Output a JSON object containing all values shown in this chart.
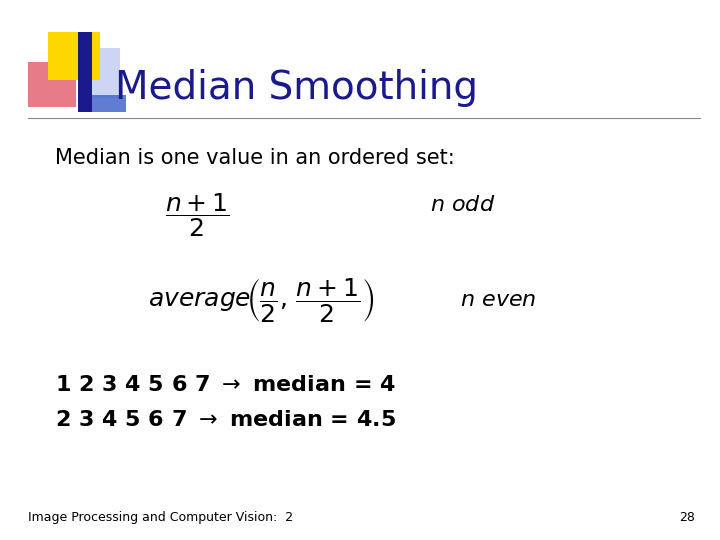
{
  "title": "Median Smoothing",
  "title_color": "#1a1a8c",
  "title_fontsize": 28,
  "subtitle": "Median is one value in an ordered set:",
  "subtitle_fontsize": 15,
  "formula_fontsize": 18,
  "label_fontsize": 16,
  "example_fontsize": 16,
  "footer": "Image Processing and Computer Vision:  2",
  "page_number": "28",
  "footer_fontsize": 9,
  "bg_color": "#ffffff",
  "text_color": "#000000",
  "accent_yellow": "#FFD700",
  "accent_red": "#e05060",
  "accent_blue_dark": "#1a1a8c",
  "accent_blue_medium": "#4466cc",
  "accent_blue_light": "#aabbee",
  "line_color": "#888888"
}
